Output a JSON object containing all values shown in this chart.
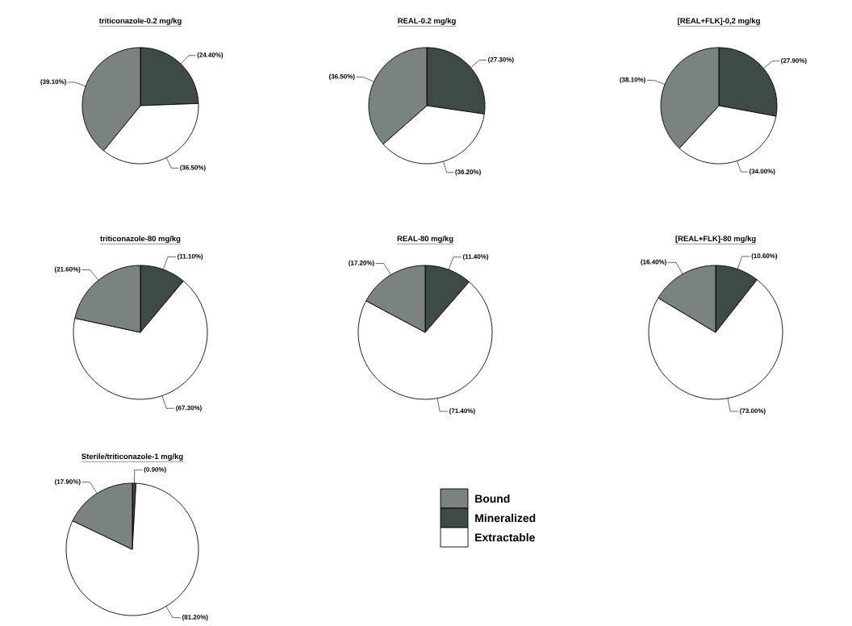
{
  "chart_data": [
    {
      "type": "pie",
      "title": "triticonazole-0.2 mg/kg",
      "values": [
        24.4,
        36.5,
        39.1
      ],
      "colors": [
        "#3d4a45",
        "#ffffff",
        "#7a837d"
      ],
      "value_labels": [
        "(24.40%)",
        "(36.50%)",
        "(39.10%)"
      ]
    },
    {
      "type": "pie",
      "title": "REAL-0.2 mg/kg",
      "values": [
        27.3,
        36.2,
        36.5
      ],
      "colors": [
        "#3d4a45",
        "#ffffff",
        "#7a837d"
      ],
      "value_labels": [
        "(27.30%)",
        "(36.20%)",
        "(36.50%)"
      ]
    },
    {
      "type": "pie",
      "title": "[REAL+FLK]-0,2 mg/kg",
      "values": [
        27.9,
        34.0,
        38.1
      ],
      "colors": [
        "#3d4a45",
        "#ffffff",
        "#7a837d"
      ],
      "value_labels": [
        "(27.90%)",
        "(34.00%)",
        "(38.10%)"
      ]
    },
    {
      "type": "pie",
      "title": "triticonazole-80 mg/kg",
      "values": [
        11.1,
        67.3,
        21.6
      ],
      "colors": [
        "#3d4a45",
        "#ffffff",
        "#7a837d"
      ],
      "value_labels": [
        "(11.10%)",
        "(67.30%)",
        "(21.60%)"
      ]
    },
    {
      "type": "pie",
      "title": "REAL-80 mg/kg",
      "values": [
        11.4,
        71.4,
        17.2
      ],
      "colors": [
        "#3d4a45",
        "#ffffff",
        "#7a837d"
      ],
      "value_labels": [
        "(11.40%)",
        "(71.40%)",
        "(17.20%)"
      ]
    },
    {
      "type": "pie",
      "title": "[REAL+FLK]-80 mg/kg",
      "values": [
        10.6,
        73.0,
        16.4
      ],
      "colors": [
        "#3d4a45",
        "#ffffff",
        "#7a837d"
      ],
      "value_labels": [
        "(10.60%)",
        "(73.00%)",
        "(16.40%)"
      ]
    },
    {
      "type": "pie",
      "title": "Sterile/triticonazole-1 mg/kg",
      "categories": [
        "Mineralized",
        "Extractable",
        "Bound"
      ],
      "values": [
        0.9,
        81.2,
        17.9
      ],
      "colors": [
        "#3d4a45",
        "#ffffff",
        "#7a837d"
      ],
      "value_labels": [
        "(0.90%)",
        "(81.20%)",
        "(17.90%)"
      ],
      "legend": "right"
    }
  ]
}
